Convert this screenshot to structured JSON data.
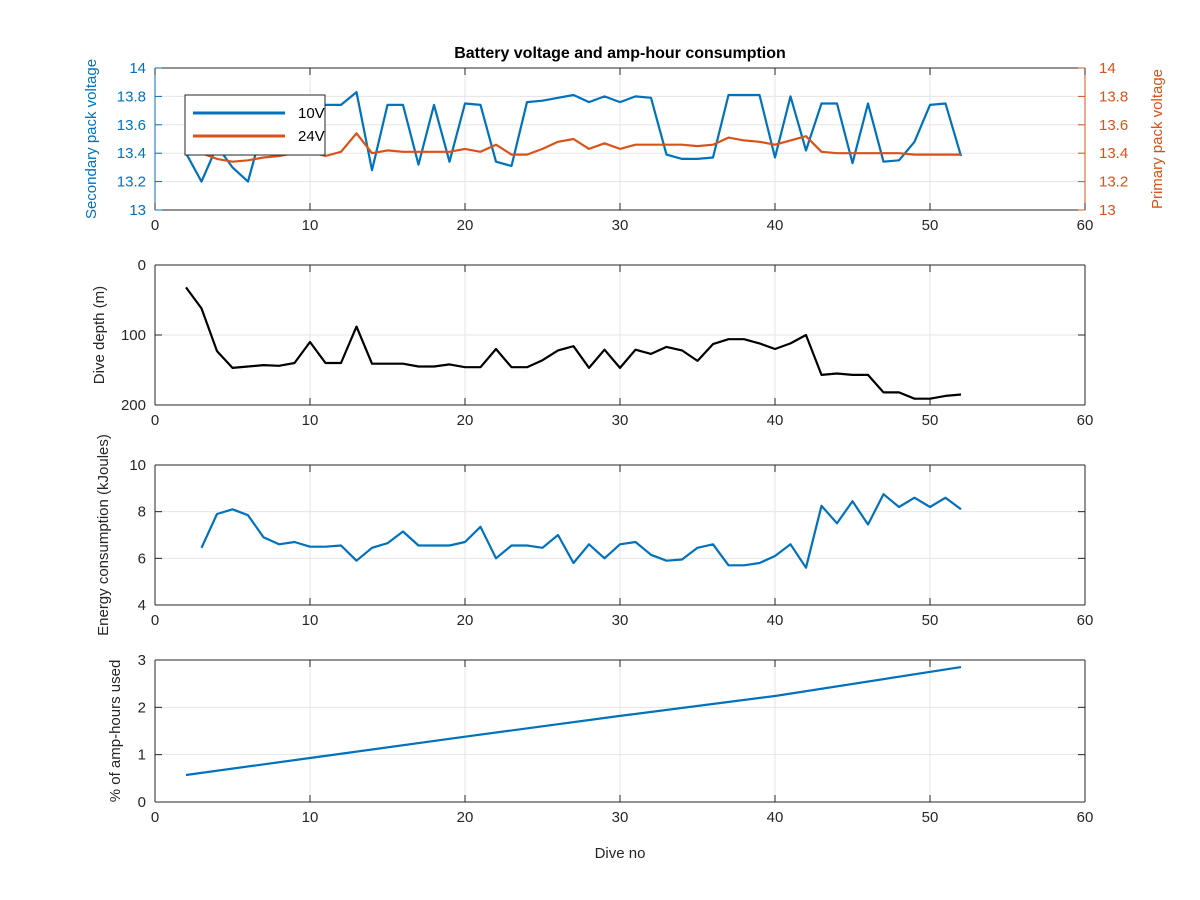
{
  "figure": {
    "title": "Battery voltage and amp-hour consumption",
    "xlabel": "Dive no"
  },
  "colors": {
    "blue": "#0072BD",
    "orange": "#D95319",
    "black": "#000000",
    "grid": "#E5E5E5",
    "axis": "#262626"
  },
  "chart_data": [
    {
      "type": "line",
      "title": "Battery voltage and amp-hour consumption",
      "xlabel": "",
      "ylabel": "Secondary pack voltage",
      "y2label": "Primary pack voltage",
      "xlim": [
        0,
        60
      ],
      "ylim": [
        13,
        14
      ],
      "y2lim": [
        13,
        14
      ],
      "xticks": [
        "0",
        "10",
        "20",
        "30",
        "40",
        "50",
        "60"
      ],
      "yticks": [
        "13",
        "13.2",
        "13.4",
        "13.6",
        "13.8",
        "14"
      ],
      "y2ticks": [
        "13",
        "13.2",
        "13.4",
        "13.6",
        "13.8",
        "14"
      ],
      "grid": true,
      "legend": "top-left",
      "series": [
        {
          "name": "10V",
          "axis": "left",
          "x": [
            2,
            3,
            4,
            5,
            6,
            7,
            8,
            9,
            10,
            11,
            12,
            13,
            14,
            15,
            16,
            17,
            18,
            19,
            20,
            21,
            22,
            23,
            24,
            25,
            26,
            27,
            28,
            29,
            30,
            31,
            32,
            33,
            34,
            35,
            36,
            37,
            38,
            39,
            40,
            41,
            42,
            43,
            44,
            45,
            46,
            47,
            48,
            49,
            50,
            51,
            52
          ],
          "values": [
            13.4,
            13.2,
            13.45,
            13.3,
            13.2,
            13.6,
            13.6,
            13.7,
            13.75,
            13.74,
            13.74,
            13.83,
            13.28,
            13.74,
            13.74,
            13.32,
            13.74,
            13.34,
            13.75,
            13.74,
            13.34,
            13.31,
            13.76,
            13.77,
            13.79,
            13.81,
            13.76,
            13.8,
            13.76,
            13.8,
            13.79,
            13.39,
            13.36,
            13.36,
            13.37,
            13.81,
            13.81,
            13.81,
            13.37,
            13.8,
            13.42,
            13.75,
            13.75,
            13.33,
            13.75,
            13.34,
            13.35,
            13.48,
            13.74,
            13.75,
            13.38
          ]
        },
        {
          "name": "24V",
          "axis": "right",
          "x": [
            2,
            3,
            4,
            5,
            6,
            7,
            8,
            9,
            10,
            11,
            12,
            13,
            14,
            15,
            16,
            17,
            18,
            19,
            20,
            21,
            22,
            23,
            24,
            25,
            26,
            27,
            28,
            29,
            30,
            31,
            32,
            33,
            34,
            35,
            36,
            37,
            38,
            39,
            40,
            41,
            42,
            43,
            44,
            45,
            46,
            47,
            48,
            49,
            50,
            51,
            52
          ],
          "values": [
            13.44,
            13.4,
            13.36,
            13.34,
            13.35,
            13.37,
            13.38,
            13.4,
            13.41,
            13.38,
            13.41,
            13.54,
            13.4,
            13.42,
            13.41,
            13.41,
            13.41,
            13.41,
            13.43,
            13.41,
            13.46,
            13.39,
            13.39,
            13.43,
            13.48,
            13.5,
            13.43,
            13.47,
            13.43,
            13.46,
            13.46,
            13.46,
            13.46,
            13.45,
            13.46,
            13.51,
            13.49,
            13.48,
            13.46,
            13.49,
            13.52,
            13.41,
            13.4,
            13.4,
            13.4,
            13.4,
            13.4,
            13.39,
            13.39,
            13.39,
            13.39
          ]
        }
      ]
    },
    {
      "type": "line",
      "title": "",
      "xlabel": "",
      "ylabel": "Dive depth (m)",
      "xlim": [
        0,
        60
      ],
      "ylim": [
        0,
        200
      ],
      "yreversed": true,
      "xticks": [
        "0",
        "10",
        "20",
        "30",
        "40",
        "50",
        "60"
      ],
      "yticks": [
        "0",
        "100",
        "200"
      ],
      "grid": true,
      "series": [
        {
          "x": [
            2,
            3,
            4,
            5,
            6,
            7,
            8,
            9,
            10,
            11,
            12,
            13,
            14,
            15,
            16,
            17,
            18,
            19,
            20,
            21,
            22,
            23,
            24,
            25,
            26,
            27,
            28,
            29,
            30,
            31,
            32,
            33,
            34,
            35,
            36,
            37,
            38,
            39,
            40,
            41,
            42,
            43,
            44,
            45,
            46,
            47,
            48,
            49,
            50,
            51,
            52
          ],
          "values": [
            32,
            62,
            123,
            147,
            145,
            143,
            144,
            140,
            110,
            140,
            140,
            88,
            141,
            141,
            141,
            145,
            145,
            142,
            146,
            146,
            120,
            146,
            146,
            136,
            122,
            116,
            147,
            121,
            147,
            121,
            127,
            117,
            122,
            137,
            113,
            106,
            106,
            112,
            120,
            112,
            100,
            157,
            155,
            157,
            157,
            182,
            182,
            191,
            191,
            187,
            185
          ]
        }
      ]
    },
    {
      "type": "line",
      "title": "",
      "xlabel": "",
      "ylabel": "Energy consumption (kJoules)",
      "xlim": [
        0,
        60
      ],
      "ylim": [
        4,
        10
      ],
      "xticks": [
        "0",
        "10",
        "20",
        "30",
        "40",
        "50",
        "60"
      ],
      "yticks": [
        "4",
        "6",
        "8",
        "10"
      ],
      "grid": true,
      "series": [
        {
          "x": [
            3,
            4,
            5,
            6,
            7,
            8,
            9,
            10,
            11,
            12,
            13,
            14,
            15,
            16,
            17,
            18,
            19,
            20,
            21,
            22,
            23,
            24,
            25,
            26,
            27,
            28,
            29,
            30,
            31,
            32,
            33,
            34,
            35,
            36,
            37,
            38,
            39,
            40,
            41,
            42,
            43,
            44,
            45,
            46,
            47,
            48,
            49,
            50,
            51,
            52
          ],
          "values": [
            6.45,
            7.9,
            8.1,
            7.85,
            6.9,
            6.6,
            6.7,
            6.5,
            6.5,
            6.55,
            5.9,
            6.45,
            6.65,
            7.15,
            6.55,
            6.55,
            6.55,
            6.7,
            7.35,
            6.0,
            6.55,
            6.55,
            6.45,
            7.0,
            5.8,
            6.6,
            6.0,
            6.6,
            6.7,
            6.15,
            5.9,
            5.95,
            6.45,
            6.6,
            5.7,
            5.7,
            5.8,
            6.1,
            6.6,
            5.6,
            8.25,
            7.5,
            8.45,
            7.45,
            8.75,
            8.2,
            8.6,
            8.2,
            8.6,
            8.1
          ]
        }
      ]
    },
    {
      "type": "line",
      "title": "",
      "xlabel": "Dive no",
      "ylabel": "% of amp-hours used",
      "xlim": [
        0,
        60
      ],
      "ylim": [
        0,
        3
      ],
      "xticks": [
        "0",
        "10",
        "20",
        "30",
        "40",
        "50",
        "60"
      ],
      "yticks": [
        "0",
        "1",
        "2",
        "3"
      ],
      "grid": true,
      "series": [
        {
          "x": [
            2,
            10,
            20,
            30,
            40,
            52
          ],
          "values": [
            0.57,
            0.93,
            1.38,
            1.82,
            2.24,
            2.85
          ]
        }
      ]
    }
  ]
}
